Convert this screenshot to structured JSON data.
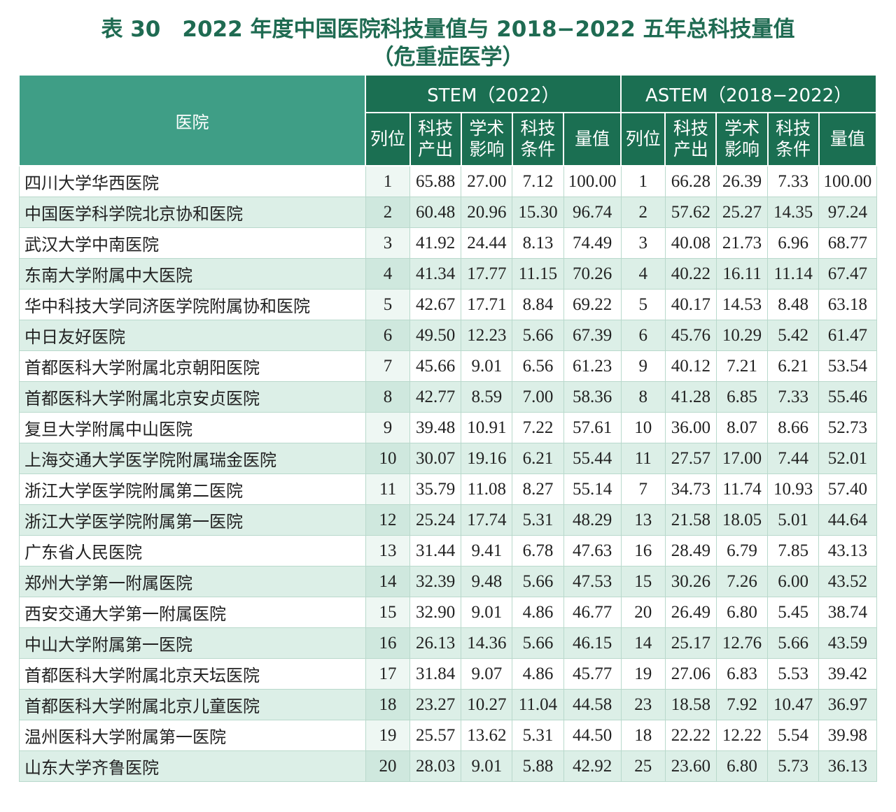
{
  "title": {
    "line1": "表 30　2022 年度中国医院科技量值与 2018−2022 五年总科技量值",
    "line2": "（危重症医学）"
  },
  "header": {
    "hospital": "医院",
    "stem": "STEM（2022）",
    "astem": "ASTEM（2018−2022）",
    "rank": "列位",
    "output": "科技产出",
    "impact": "学术影响",
    "conditions": "科技条件",
    "total": "量值"
  },
  "colors": {
    "title": "#1f6b52",
    "header_dark": "#1b6f52",
    "header_light": "#3f9e86",
    "row_alt": "#dcefe7"
  },
  "rows": [
    {
      "name": "四川大学华西医院",
      "r1": "1",
      "o1": "65.88",
      "i1": "27.00",
      "c1": "7.12",
      "t1": "100.00",
      "r2": "1",
      "o2": "66.28",
      "i2": "26.39",
      "c2": "7.33",
      "t2": "100.00"
    },
    {
      "name": "中国医学科学院北京协和医院",
      "r1": "2",
      "o1": "60.48",
      "i1": "20.96",
      "c1": "15.30",
      "t1": "96.74",
      "r2": "2",
      "o2": "57.62",
      "i2": "25.27",
      "c2": "14.35",
      "t2": "97.24"
    },
    {
      "name": "武汉大学中南医院",
      "r1": "3",
      "o1": "41.92",
      "i1": "24.44",
      "c1": "8.13",
      "t1": "74.49",
      "r2": "3",
      "o2": "40.08",
      "i2": "21.73",
      "c2": "6.96",
      "t2": "68.77"
    },
    {
      "name": "东南大学附属中大医院",
      "r1": "4",
      "o1": "41.34",
      "i1": "17.77",
      "c1": "11.15",
      "t1": "70.26",
      "r2": "4",
      "o2": "40.22",
      "i2": "16.11",
      "c2": "11.14",
      "t2": "67.47"
    },
    {
      "name": "华中科技大学同济医学院附属协和医院",
      "r1": "5",
      "o1": "42.67",
      "i1": "17.71",
      "c1": "8.84",
      "t1": "69.22",
      "r2": "5",
      "o2": "40.17",
      "i2": "14.53",
      "c2": "8.48",
      "t2": "63.18"
    },
    {
      "name": "中日友好医院",
      "r1": "6",
      "o1": "49.50",
      "i1": "12.23",
      "c1": "5.66",
      "t1": "67.39",
      "r2": "6",
      "o2": "45.76",
      "i2": "10.29",
      "c2": "5.42",
      "t2": "61.47"
    },
    {
      "name": "首都医科大学附属北京朝阳医院",
      "r1": "7",
      "o1": "45.66",
      "i1": "9.01",
      "c1": "6.56",
      "t1": "61.23",
      "r2": "9",
      "o2": "40.12",
      "i2": "7.21",
      "c2": "6.21",
      "t2": "53.54"
    },
    {
      "name": "首都医科大学附属北京安贞医院",
      "r1": "8",
      "o1": "42.77",
      "i1": "8.59",
      "c1": "7.00",
      "t1": "58.36",
      "r2": "8",
      "o2": "41.28",
      "i2": "6.85",
      "c2": "7.33",
      "t2": "55.46"
    },
    {
      "name": "复旦大学附属中山医院",
      "r1": "9",
      "o1": "39.48",
      "i1": "10.91",
      "c1": "7.22",
      "t1": "57.61",
      "r2": "10",
      "o2": "36.00",
      "i2": "8.07",
      "c2": "8.66",
      "t2": "52.73"
    },
    {
      "name": "上海交通大学医学院附属瑞金医院",
      "r1": "10",
      "o1": "30.07",
      "i1": "19.16",
      "c1": "6.21",
      "t1": "55.44",
      "r2": "11",
      "o2": "27.57",
      "i2": "17.00",
      "c2": "7.44",
      "t2": "52.01"
    },
    {
      "name": "浙江大学医学院附属第二医院",
      "r1": "11",
      "o1": "35.79",
      "i1": "11.08",
      "c1": "8.27",
      "t1": "55.14",
      "r2": "7",
      "o2": "34.73",
      "i2": "11.74",
      "c2": "10.93",
      "t2": "57.40"
    },
    {
      "name": "浙江大学医学院附属第一医院",
      "r1": "12",
      "o1": "25.24",
      "i1": "17.74",
      "c1": "5.31",
      "t1": "48.29",
      "r2": "13",
      "o2": "21.58",
      "i2": "18.05",
      "c2": "5.01",
      "t2": "44.64"
    },
    {
      "name": "广东省人民医院",
      "r1": "13",
      "o1": "31.44",
      "i1": "9.41",
      "c1": "6.78",
      "t1": "47.63",
      "r2": "16",
      "o2": "28.49",
      "i2": "6.79",
      "c2": "7.85",
      "t2": "43.13"
    },
    {
      "name": "郑州大学第一附属医院",
      "r1": "14",
      "o1": "32.39",
      "i1": "9.48",
      "c1": "5.66",
      "t1": "47.53",
      "r2": "15",
      "o2": "30.26",
      "i2": "7.26",
      "c2": "6.00",
      "t2": "43.52"
    },
    {
      "name": "西安交通大学第一附属医院",
      "r1": "15",
      "o1": "32.90",
      "i1": "9.01",
      "c1": "4.86",
      "t1": "46.77",
      "r2": "20",
      "o2": "26.49",
      "i2": "6.80",
      "c2": "5.45",
      "t2": "38.74"
    },
    {
      "name": "中山大学附属第一医院",
      "r1": "16",
      "o1": "26.13",
      "i1": "14.36",
      "c1": "5.66",
      "t1": "46.15",
      "r2": "14",
      "o2": "25.17",
      "i2": "12.76",
      "c2": "5.66",
      "t2": "43.59"
    },
    {
      "name": "首都医科大学附属北京天坛医院",
      "r1": "17",
      "o1": "31.84",
      "i1": "9.07",
      "c1": "4.86",
      "t1": "45.77",
      "r2": "19",
      "o2": "27.06",
      "i2": "6.83",
      "c2": "5.53",
      "t2": "39.42"
    },
    {
      "name": "首都医科大学附属北京儿童医院",
      "r1": "18",
      "o1": "23.27",
      "i1": "10.27",
      "c1": "11.04",
      "t1": "44.58",
      "r2": "23",
      "o2": "18.58",
      "i2": "7.92",
      "c2": "10.47",
      "t2": "36.97"
    },
    {
      "name": "温州医科大学附属第一医院",
      "r1": "19",
      "o1": "25.57",
      "i1": "13.62",
      "c1": "5.31",
      "t1": "44.50",
      "r2": "18",
      "o2": "22.22",
      "i2": "12.22",
      "c2": "5.54",
      "t2": "39.98"
    },
    {
      "name": "山东大学齐鲁医院",
      "r1": "20",
      "o1": "28.03",
      "i1": "9.01",
      "c1": "5.88",
      "t1": "42.92",
      "r2": "25",
      "o2": "23.60",
      "i2": "6.80",
      "c2": "5.73",
      "t2": "36.13"
    }
  ]
}
